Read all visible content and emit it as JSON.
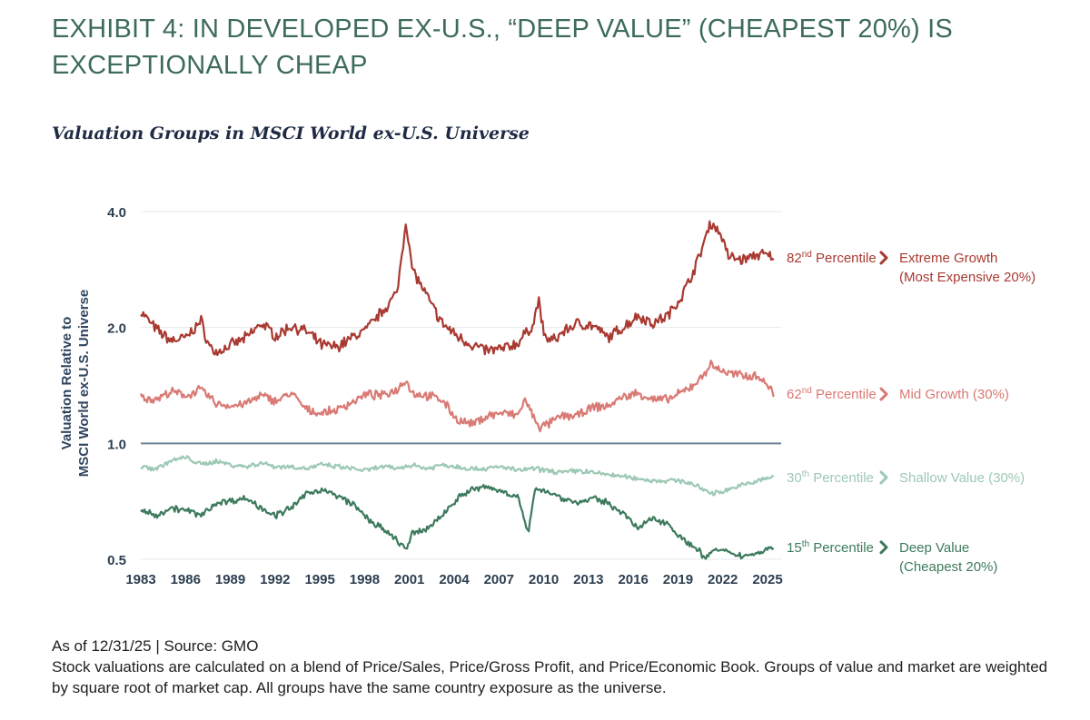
{
  "title": "EXHIBIT 4: IN DEVELOPED EX-U.S., “DEEP VALUE” (CHEAPEST 20%) IS EXCEPTIONALLY CHEAP",
  "footnote": {
    "source": "As of 12/31/25 | Source: GMO",
    "description": "Stock valuations are calculated on a blend of Price/Sales, Price/Gross Profit, and Price/Economic Book. Groups of value and market are weighted by square root of market cap. All groups have the same country exposure as the universe."
  },
  "chart_data": {
    "type": "line",
    "title": "Valuation Groups in MSCI World ex-U.S. Universe",
    "ylabel_lines": [
      "Valuation Relative to",
      "MSCI World ex-U.S. Universe"
    ],
    "yscale": "log",
    "ylim": [
      0.5,
      4.0
    ],
    "xlim": [
      1983,
      2025.5
    ],
    "yticks": [
      {
        "value": 4.0,
        "label": "4.0"
      },
      {
        "value": 2.0,
        "label": "2.0"
      },
      {
        "value": 1.0,
        "label": "1.0"
      },
      {
        "value": 0.5,
        "label": "0.5"
      }
    ],
    "xticks": [
      "1983",
      "1986",
      "1989",
      "1992",
      "1995",
      "1998",
      "2001",
      "2004",
      "2007",
      "2010",
      "2013",
      "2016",
      "2019",
      "2022",
      "2025"
    ],
    "reference_line": {
      "value": 1.0,
      "color": "#6e8298"
    },
    "series": [
      {
        "name": "Extreme Growth",
        "percentile_num": "82",
        "percentile_sup": "nd",
        "percentile_word": " Percentile",
        "label_lines": [
          "Extreme Growth",
          "(Most Expensive 20%)"
        ],
        "color": "#a93a32",
        "points": [
          [
            1983,
            2.2
          ],
          [
            1984,
            1.98
          ],
          [
            1985,
            1.85
          ],
          [
            1986,
            1.88
          ],
          [
            1987,
            2.08
          ],
          [
            1987.5,
            1.8
          ],
          [
            1988,
            1.72
          ],
          [
            1989,
            1.8
          ],
          [
            1990,
            1.88
          ],
          [
            1991,
            2.05
          ],
          [
            1992,
            1.9
          ],
          [
            1993,
            2.02
          ],
          [
            1994,
            1.95
          ],
          [
            1995,
            1.8
          ],
          [
            1996,
            1.78
          ],
          [
            1997,
            1.88
          ],
          [
            1998,
            1.98
          ],
          [
            1999,
            2.2
          ],
          [
            2000,
            2.45
          ],
          [
            2000.6,
            3.8
          ],
          [
            2001,
            2.85
          ],
          [
            2002,
            2.4
          ],
          [
            2003,
            2.05
          ],
          [
            2004,
            1.9
          ],
          [
            2005,
            1.8
          ],
          [
            2006,
            1.74
          ],
          [
            2007,
            1.76
          ],
          [
            2008,
            1.82
          ],
          [
            2009,
            2.02
          ],
          [
            2009.4,
            2.35
          ],
          [
            2009.8,
            1.88
          ],
          [
            2010.5,
            1.85
          ],
          [
            2011,
            1.95
          ],
          [
            2012,
            2.05
          ],
          [
            2013,
            2.02
          ],
          [
            2014,
            1.88
          ],
          [
            2015,
            2.0
          ],
          [
            2016,
            2.15
          ],
          [
            2017,
            2.05
          ],
          [
            2018,
            2.15
          ],
          [
            2019,
            2.45
          ],
          [
            2020,
            3.0
          ],
          [
            2020.8,
            3.75
          ],
          [
            2021.5,
            3.5
          ],
          [
            2022,
            3.05
          ],
          [
            2023,
            3.0
          ],
          [
            2024,
            3.1
          ],
          [
            2025,
            3.05
          ]
        ]
      },
      {
        "name": "Mid Growth",
        "percentile_num": "62",
        "percentile_sup": "nd",
        "percentile_word": " Percentile",
        "label_lines": [
          "Mid Growth (30%)"
        ],
        "color": "#d97a74",
        "points": [
          [
            1983,
            1.32
          ],
          [
            1984,
            1.3
          ],
          [
            1985,
            1.36
          ],
          [
            1986,
            1.33
          ],
          [
            1987,
            1.38
          ],
          [
            1988,
            1.27
          ],
          [
            1989,
            1.25
          ],
          [
            1990,
            1.27
          ],
          [
            1991,
            1.33
          ],
          [
            1992,
            1.29
          ],
          [
            1993,
            1.35
          ],
          [
            1994,
            1.22
          ],
          [
            1995,
            1.2
          ],
          [
            1996,
            1.22
          ],
          [
            1997,
            1.28
          ],
          [
            1998,
            1.34
          ],
          [
            1999,
            1.33
          ],
          [
            2000,
            1.38
          ],
          [
            2000.6,
            1.47
          ],
          [
            2001,
            1.35
          ],
          [
            2002,
            1.33
          ],
          [
            2003,
            1.3
          ],
          [
            2004,
            1.15
          ],
          [
            2005,
            1.12
          ],
          [
            2006,
            1.18
          ],
          [
            2007,
            1.2
          ],
          [
            2008,
            1.18
          ],
          [
            2008.5,
            1.3
          ],
          [
            2009,
            1.18
          ],
          [
            2009.5,
            1.1
          ],
          [
            2010,
            1.12
          ],
          [
            2011,
            1.18
          ],
          [
            2012,
            1.18
          ],
          [
            2013,
            1.24
          ],
          [
            2014,
            1.25
          ],
          [
            2015,
            1.32
          ],
          [
            2016,
            1.35
          ],
          [
            2017,
            1.3
          ],
          [
            2018,
            1.3
          ],
          [
            2019,
            1.36
          ],
          [
            2020,
            1.45
          ],
          [
            2020.8,
            1.6
          ],
          [
            2021.5,
            1.55
          ],
          [
            2022,
            1.52
          ],
          [
            2023,
            1.5
          ],
          [
            2024,
            1.5
          ],
          [
            2025,
            1.35
          ]
        ]
      },
      {
        "name": "Shallow Value",
        "percentile_num": "30",
        "percentile_sup": "th",
        "percentile_word": " Percentile",
        "label_lines": [
          "Shallow Value (30%)"
        ],
        "color": "#9cc8b4",
        "points": [
          [
            1983,
            0.87
          ],
          [
            1984,
            0.86
          ],
          [
            1985,
            0.9
          ],
          [
            1986,
            0.92
          ],
          [
            1987,
            0.88
          ],
          [
            1988,
            0.9
          ],
          [
            1989,
            0.88
          ],
          [
            1990,
            0.87
          ],
          [
            1991,
            0.89
          ],
          [
            1992,
            0.87
          ],
          [
            1993,
            0.87
          ],
          [
            1994,
            0.86
          ],
          [
            1995,
            0.88
          ],
          [
            1996,
            0.87
          ],
          [
            1997,
            0.86
          ],
          [
            1998,
            0.85
          ],
          [
            1999,
            0.87
          ],
          [
            2000,
            0.86
          ],
          [
            2001,
            0.88
          ],
          [
            2002,
            0.86
          ],
          [
            2003,
            0.88
          ],
          [
            2004,
            0.87
          ],
          [
            2005,
            0.86
          ],
          [
            2006,
            0.86
          ],
          [
            2007,
            0.87
          ],
          [
            2008,
            0.85
          ],
          [
            2009,
            0.86
          ],
          [
            2010,
            0.85
          ],
          [
            2011,
            0.84
          ],
          [
            2012,
            0.85
          ],
          [
            2013,
            0.84
          ],
          [
            2014,
            0.83
          ],
          [
            2015,
            0.82
          ],
          [
            2016,
            0.81
          ],
          [
            2017,
            0.8
          ],
          [
            2018,
            0.8
          ],
          [
            2019,
            0.8
          ],
          [
            2020,
            0.77
          ],
          [
            2021,
            0.74
          ],
          [
            2022,
            0.76
          ],
          [
            2023,
            0.78
          ],
          [
            2024,
            0.8
          ],
          [
            2025,
            0.82
          ]
        ]
      },
      {
        "name": "Deep Value",
        "percentile_num": "15",
        "percentile_sup": "th",
        "percentile_word": " Percentile",
        "label_lines": [
          "Deep Value",
          "(Cheapest 20%)"
        ],
        "color": "#3d7a5c",
        "points": [
          [
            1983,
            0.67
          ],
          [
            1984,
            0.65
          ],
          [
            1985,
            0.68
          ],
          [
            1986,
            0.67
          ],
          [
            1987,
            0.65
          ],
          [
            1988,
            0.7
          ],
          [
            1989,
            0.71
          ],
          [
            1990,
            0.72
          ],
          [
            1991,
            0.68
          ],
          [
            1992,
            0.65
          ],
          [
            1993,
            0.68
          ],
          [
            1994,
            0.74
          ],
          [
            1995,
            0.76
          ],
          [
            1996,
            0.73
          ],
          [
            1997,
            0.7
          ],
          [
            1998,
            0.64
          ],
          [
            1999,
            0.6
          ],
          [
            2000,
            0.56
          ],
          [
            2000.6,
            0.53
          ],
          [
            2001,
            0.58
          ],
          [
            2002,
            0.6
          ],
          [
            2003,
            0.65
          ],
          [
            2004,
            0.72
          ],
          [
            2005,
            0.76
          ],
          [
            2006,
            0.77
          ],
          [
            2007,
            0.75
          ],
          [
            2008,
            0.73
          ],
          [
            2008.7,
            0.58
          ],
          [
            2009.2,
            0.77
          ],
          [
            2010,
            0.75
          ],
          [
            2011,
            0.72
          ],
          [
            2012,
            0.7
          ],
          [
            2013,
            0.72
          ],
          [
            2014,
            0.7
          ],
          [
            2015,
            0.66
          ],
          [
            2016,
            0.6
          ],
          [
            2017,
            0.64
          ],
          [
            2018,
            0.62
          ],
          [
            2019,
            0.56
          ],
          [
            2020,
            0.53
          ],
          [
            2020.5,
            0.5
          ],
          [
            2021,
            0.53
          ],
          [
            2022,
            0.52
          ],
          [
            2023,
            0.51
          ],
          [
            2024,
            0.52
          ],
          [
            2025,
            0.54
          ]
        ]
      }
    ]
  }
}
